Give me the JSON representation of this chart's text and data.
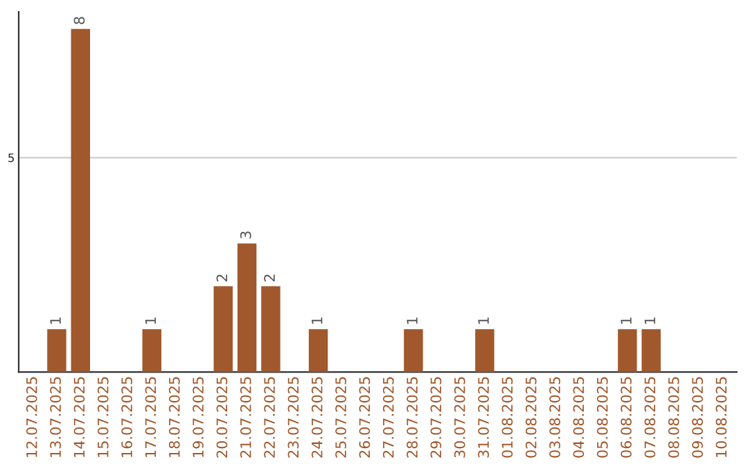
{
  "chart_data": {
    "type": "bar",
    "categories": [
      "12.07.2025",
      "13.07.2025",
      "14.07.2025",
      "15.07.2025",
      "16.07.2025",
      "17.07.2025",
      "18.07.2025",
      "19.07.2025",
      "20.07.2025",
      "21.07.2025",
      "22.07.2025",
      "23.07.2025",
      "24.07.2025",
      "25.07.2025",
      "26.07.2025",
      "27.07.2025",
      "28.07.2025",
      "29.07.2025",
      "30.07.2025",
      "31.07.2025",
      "01.08.2025",
      "02.08.2025",
      "03.08.2025",
      "04.08.2025",
      "05.08.2025",
      "06.08.2025",
      "07.08.2025",
      "08.08.2025",
      "09.08.2025",
      "10.08.2025"
    ],
    "values": [
      0,
      1,
      8,
      0,
      0,
      1,
      0,
      0,
      2,
      3,
      2,
      0,
      1,
      0,
      0,
      0,
      1,
      0,
      0,
      1,
      0,
      0,
      0,
      0,
      0,
      1,
      1,
      0,
      0,
      0
    ],
    "color": "#a0582c",
    "value_labels": [
      null,
      "1",
      "8",
      null,
      null,
      "1",
      null,
      null,
      "2",
      "3",
      "2",
      null,
      "1",
      null,
      null,
      null,
      "1",
      null,
      null,
      "1",
      null,
      null,
      null,
      null,
      null,
      "1",
      "1",
      null,
      null,
      null
    ],
    "ylim": [
      0,
      8.4
    ],
    "yticks": [
      5
    ],
    "grid": "y",
    "legend": false
  }
}
